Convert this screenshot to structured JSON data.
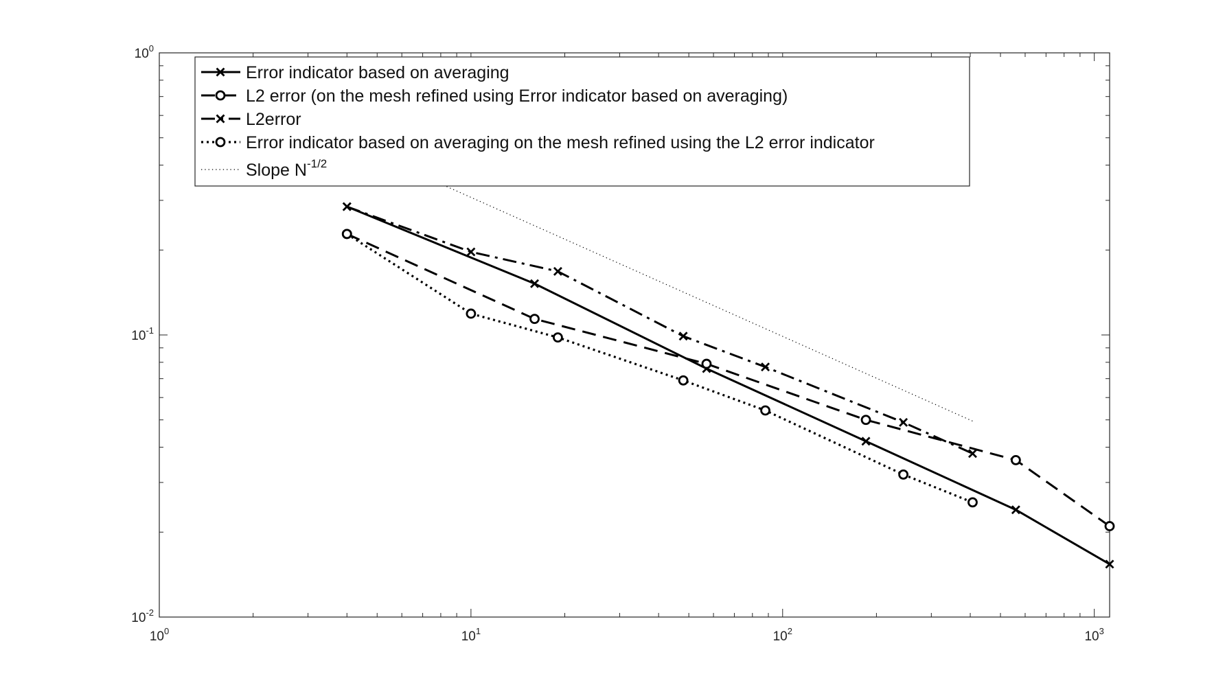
{
  "chart_data": {
    "type": "line",
    "title": "",
    "xlabel": "",
    "ylabel": "",
    "xscale": "log",
    "yscale": "log",
    "xlim": [
      1,
      1120
    ],
    "ylim": [
      0.01,
      1
    ],
    "grid": false,
    "legend_position": "top-left",
    "x_ticks": [
      {
        "value": 1,
        "base": "10",
        "exp": "0"
      },
      {
        "value": 10,
        "base": "10",
        "exp": "1"
      },
      {
        "value": 100,
        "base": "10",
        "exp": "2"
      },
      {
        "value": 1000,
        "base": "10",
        "exp": "3"
      }
    ],
    "y_ticks": [
      {
        "value": 0.01,
        "base": "10",
        "exp": "-2"
      },
      {
        "value": 0.1,
        "base": "10",
        "exp": "-1"
      },
      {
        "value": 1,
        "base": "10",
        "exp": "0"
      }
    ],
    "series": [
      {
        "name": "Error indicator based on averaging",
        "line_style": "solid",
        "marker": "x",
        "x": [
          4,
          16,
          57,
          185,
          560,
          1120
        ],
        "y": [
          0.285,
          0.152,
          0.076,
          0.042,
          0.024,
          0.0154
        ]
      },
      {
        "name": "L2 error (on the mesh refined using Error indicator based on averaging)",
        "line_style": "dashed",
        "marker": "o",
        "x": [
          4,
          16,
          57,
          185,
          560,
          1120
        ],
        "y": [
          0.228,
          0.114,
          0.079,
          0.05,
          0.036,
          0.021
        ]
      },
      {
        "name": "L2error",
        "line_style": "dashdot",
        "marker": "x",
        "x": [
          4,
          10,
          19,
          48,
          88,
          244,
          407
        ],
        "y": [
          0.285,
          0.197,
          0.168,
          0.099,
          0.077,
          0.049,
          0.038
        ]
      },
      {
        "name": "Error indicator based on averaging on the mesh refined using the L2 error indicator",
        "line_style": "dotted",
        "marker": "o",
        "x": [
          4,
          10,
          19,
          48,
          88,
          244,
          407
        ],
        "y": [
          0.228,
          0.119,
          0.098,
          0.069,
          0.054,
          0.032,
          0.0255
        ]
      },
      {
        "name": "Slope N",
        "name_superscript": "-1/2",
        "line_style": "fine-dotted",
        "marker": "none",
        "x": [
          8.15,
          407
        ],
        "y": [
          0.34,
          0.0495
        ]
      }
    ]
  }
}
